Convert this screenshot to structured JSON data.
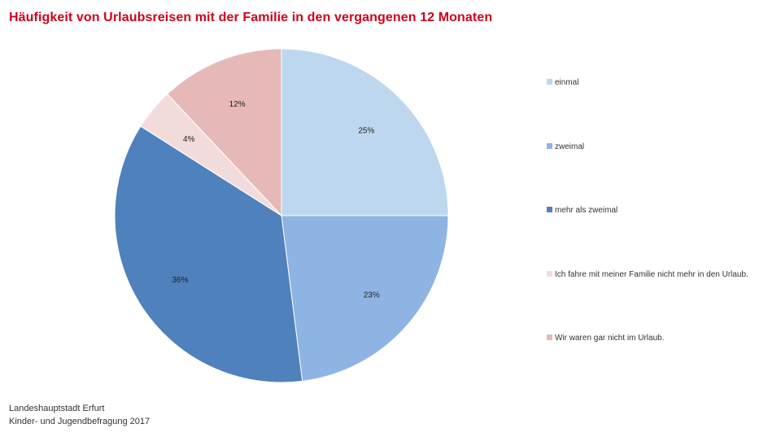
{
  "title": "Häufigkeit von Urlaubsreisen mit der Familie in den vergangenen 12 Monaten",
  "colors": {
    "title": "#d0021b",
    "slices": [
      "#bdd7ee",
      "#8eb4e3",
      "#4f81bd",
      "#f2dcdb",
      "#e6b9b8"
    ]
  },
  "chart_data": {
    "type": "pie",
    "title": "Häufigkeit von Urlaubsreisen mit der Familie in den vergangenen 12 Monaten",
    "legend_position": "right",
    "slices": [
      {
        "label": "einmal",
        "value": 25,
        "display": "25%"
      },
      {
        "label": "zweimal",
        "value": 23,
        "display": "23%"
      },
      {
        "label": "mehr als zweimal",
        "value": 36,
        "display": "36%"
      },
      {
        "label": "Ich fahre mit meiner Familie nicht mehr in den Urlaub.",
        "value": 4,
        "display": "4%"
      },
      {
        "label": "Wir waren gar nicht im Urlaub.",
        "value": 12,
        "display": "12%"
      }
    ]
  },
  "source": {
    "line1": "Landeshauptstadt Erfurt",
    "line2": "Kinder- und Jugendbefragung 2017"
  }
}
